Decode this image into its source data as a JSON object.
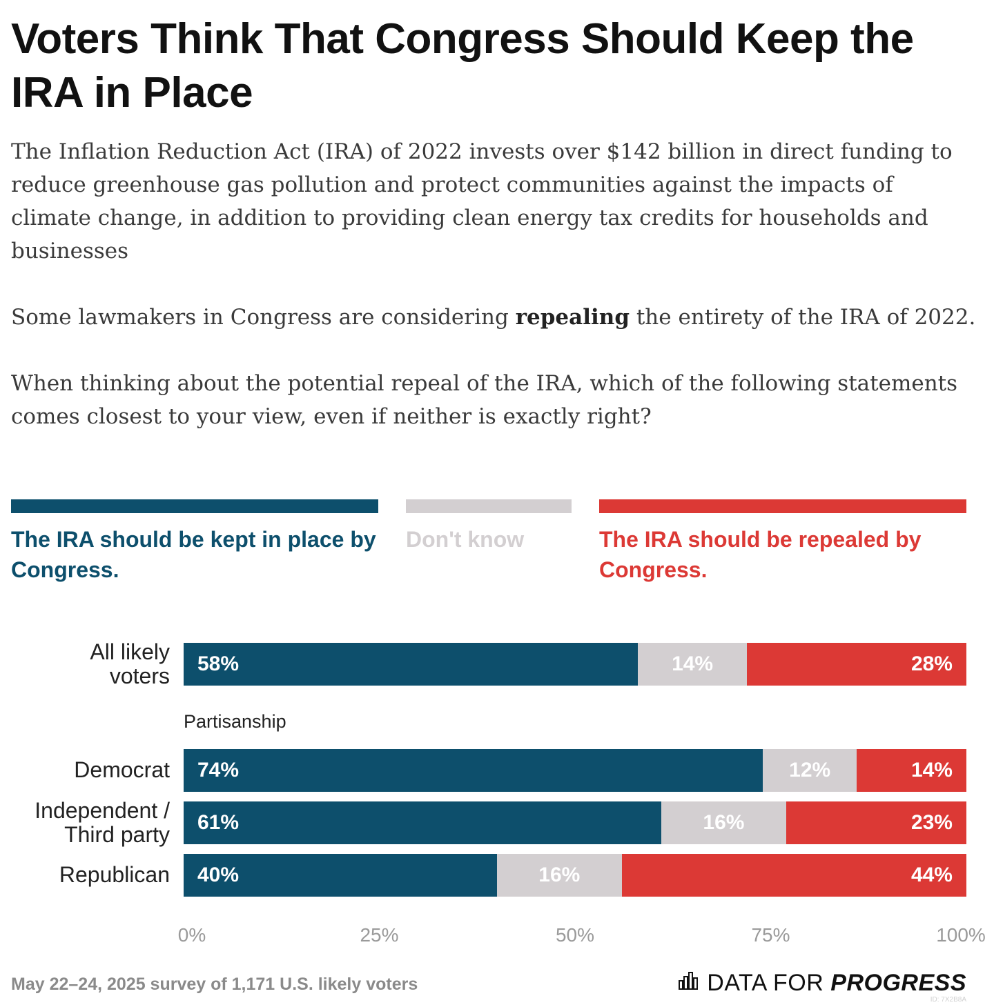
{
  "header": {
    "title": "Voters Think That Congress Should Keep the IRA in Place",
    "intro_p1": "The Inflation Reduction Act (IRA) of 2022 invests over $142 billion in direct funding to reduce greenhouse gas pollution and protect communities against the impacts of climate change, in addition to providing clean energy tax credits for households and businesses",
    "intro_p2_before": "Some lawmakers in Congress are considering ",
    "intro_p2_bold": "repealing",
    "intro_p2_after": " the entirety of the IRA of 2022.",
    "intro_p3": "When thinking about the potential repeal of the IRA, which of the following statements comes closest to your view, even if neither is exactly right?"
  },
  "colors": {
    "keep": "#0d4f6c",
    "dont_know": "#d3cfd1",
    "repeal": "#dc3935"
  },
  "chart_data": {
    "type": "bar",
    "orientation": "horizontal",
    "stacked": true,
    "categories": [
      "All likely voters",
      "Democrat",
      "Independent / Third party",
      "Republican"
    ],
    "group_heading": "Partisanship",
    "series": [
      {
        "name": "The IRA should be kept in place by Congress.",
        "values": [
          58,
          74,
          61,
          40
        ],
        "labels": [
          "58%",
          "74%",
          "61%",
          "40%"
        ]
      },
      {
        "name": "Don't know",
        "values": [
          14,
          12,
          16,
          16
        ],
        "labels": [
          "14%",
          "12%",
          "16%",
          "16%"
        ]
      },
      {
        "name": "The IRA should be repealed by Congress.",
        "values": [
          28,
          14,
          23,
          44
        ],
        "labels": [
          "28%",
          "14%",
          "23%",
          "44%"
        ]
      }
    ],
    "xlim": [
      0,
      100
    ],
    "xticks": [
      "0%",
      "25%",
      "50%",
      "75%",
      "100%"
    ],
    "legend_position": "top",
    "grid": false
  },
  "footer": {
    "note": "May 22–24, 2025 survey of 1,171 U.S. likely voters",
    "brand_part1": "DATA FOR",
    "brand_part2": "PROGRESS",
    "brand_icon": "bar-chart-logo-icon",
    "id_text": "ID: 7X2B8A"
  }
}
